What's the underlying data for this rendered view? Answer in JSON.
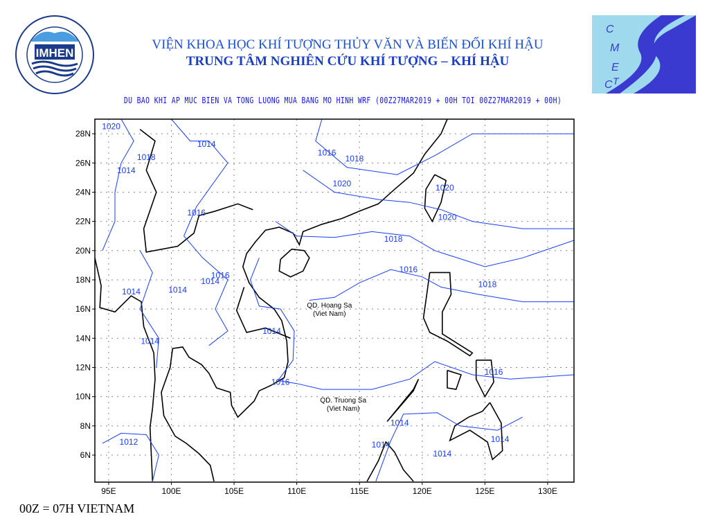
{
  "header": {
    "institute": "VIỆN KHOA HỌC KHÍ TƯỢNG THỦY VĂN VÀ BIẾN ĐỔI KHÍ HẬU",
    "center": "TRUNG TÂM NGHIÊN CỨU KHÍ TƯỢNG – KHÍ HẬU",
    "map_title": "DU BAO KHI AP MUC BIEN VA TONG LUONG MUA BANG MO HINH WRF (00Z27MAR2019 + 00H TOI 00Z27MAR2019 + 00H)"
  },
  "logos": {
    "left": {
      "text": "IMHEN",
      "ring": "VIỆN KHOA HỌC KHÍ TƯỢNG THỦY VĂN VÀ BIẾN ĐỔI KHÍ HẬU"
    },
    "right": {
      "text": "CMETC"
    }
  },
  "footer": "00Z = 07H VIETNAM",
  "map": {
    "lon_range": [
      93.9,
      132.1
    ],
    "lat_range": [
      4.15,
      29
    ],
    "x_ticks": [
      {
        "v": 95,
        "label": "95E"
      },
      {
        "v": 100,
        "label": "100E"
      },
      {
        "v": 105,
        "label": "105E"
      },
      {
        "v": 110,
        "label": "110E"
      },
      {
        "v": 115,
        "label": "115E"
      },
      {
        "v": 120,
        "label": "120E"
      },
      {
        "v": 125,
        "label": "125E"
      },
      {
        "v": 130,
        "label": "130E"
      }
    ],
    "y_ticks": [
      {
        "v": 6,
        "label": "6N"
      },
      {
        "v": 8,
        "label": "8N"
      },
      {
        "v": 10,
        "label": "10N"
      },
      {
        "v": 12,
        "label": "12N"
      },
      {
        "v": 14,
        "label": "14N"
      },
      {
        "v": 16,
        "label": "16N"
      },
      {
        "v": 18,
        "label": "18N"
      },
      {
        "v": 20,
        "label": "20N"
      },
      {
        "v": 22,
        "label": "22N"
      },
      {
        "v": 24,
        "label": "24N"
      },
      {
        "v": 26,
        "label": "26N"
      },
      {
        "v": 28,
        "label": "28N"
      }
    ],
    "grid": "dotted",
    "colors": {
      "contour": "#1a3cff",
      "coast": "#000000",
      "title": "#1010ff"
    },
    "places": [
      {
        "line1": "QD. Hoang Sa",
        "line2": "(Viet Nam)",
        "lon": 112.6,
        "lat": 16.1
      },
      {
        "line1": "QD. Truong Sa",
        "line2": "(Viet Nam)",
        "lon": 113.7,
        "lat": 9.6
      }
    ],
    "contour_labels": [
      {
        "t": "1020",
        "lon": 95.2,
        "lat": 28.5
      },
      {
        "t": "1014",
        "lon": 102.8,
        "lat": 27.3
      },
      {
        "t": "1018",
        "lon": 98.0,
        "lat": 26.4
      },
      {
        "t": "1014",
        "lon": 96.4,
        "lat": 25.5
      },
      {
        "t": "1016",
        "lon": 112.4,
        "lat": 26.7
      },
      {
        "t": "1018",
        "lon": 114.6,
        "lat": 26.3
      },
      {
        "t": "1020",
        "lon": 113.6,
        "lat": 24.6
      },
      {
        "t": "1020",
        "lon": 121.8,
        "lat": 24.3
      },
      {
        "t": "1020",
        "lon": 122.0,
        "lat": 22.3
      },
      {
        "t": "1016",
        "lon": 102.0,
        "lat": 22.6
      },
      {
        "t": "1018",
        "lon": 117.7,
        "lat": 20.8
      },
      {
        "t": "1016",
        "lon": 118.9,
        "lat": 18.7
      },
      {
        "t": "1018",
        "lon": 125.2,
        "lat": 17.7
      },
      {
        "t": "1016",
        "lon": 103.9,
        "lat": 18.3
      },
      {
        "t": "1014",
        "lon": 103.1,
        "lat": 17.9
      },
      {
        "t": "1014",
        "lon": 100.5,
        "lat": 17.3
      },
      {
        "t": "1014",
        "lon": 96.8,
        "lat": 17.2
      },
      {
        "t": "1014",
        "lon": 98.3,
        "lat": 13.8
      },
      {
        "t": "1014",
        "lon": 108.0,
        "lat": 14.5
      },
      {
        "t": "1016",
        "lon": 108.7,
        "lat": 11.0
      },
      {
        "t": "1016",
        "lon": 125.7,
        "lat": 11.7
      },
      {
        "t": "1014",
        "lon": 118.2,
        "lat": 8.2
      },
      {
        "t": "1012",
        "lon": 96.6,
        "lat": 6.9
      },
      {
        "t": "1014",
        "lon": 116.7,
        "lat": 6.7
      },
      {
        "t": "1014",
        "lon": 126.2,
        "lat": 7.1
      },
      {
        "t": "1014",
        "lon": 121.6,
        "lat": 6.1
      }
    ]
  }
}
